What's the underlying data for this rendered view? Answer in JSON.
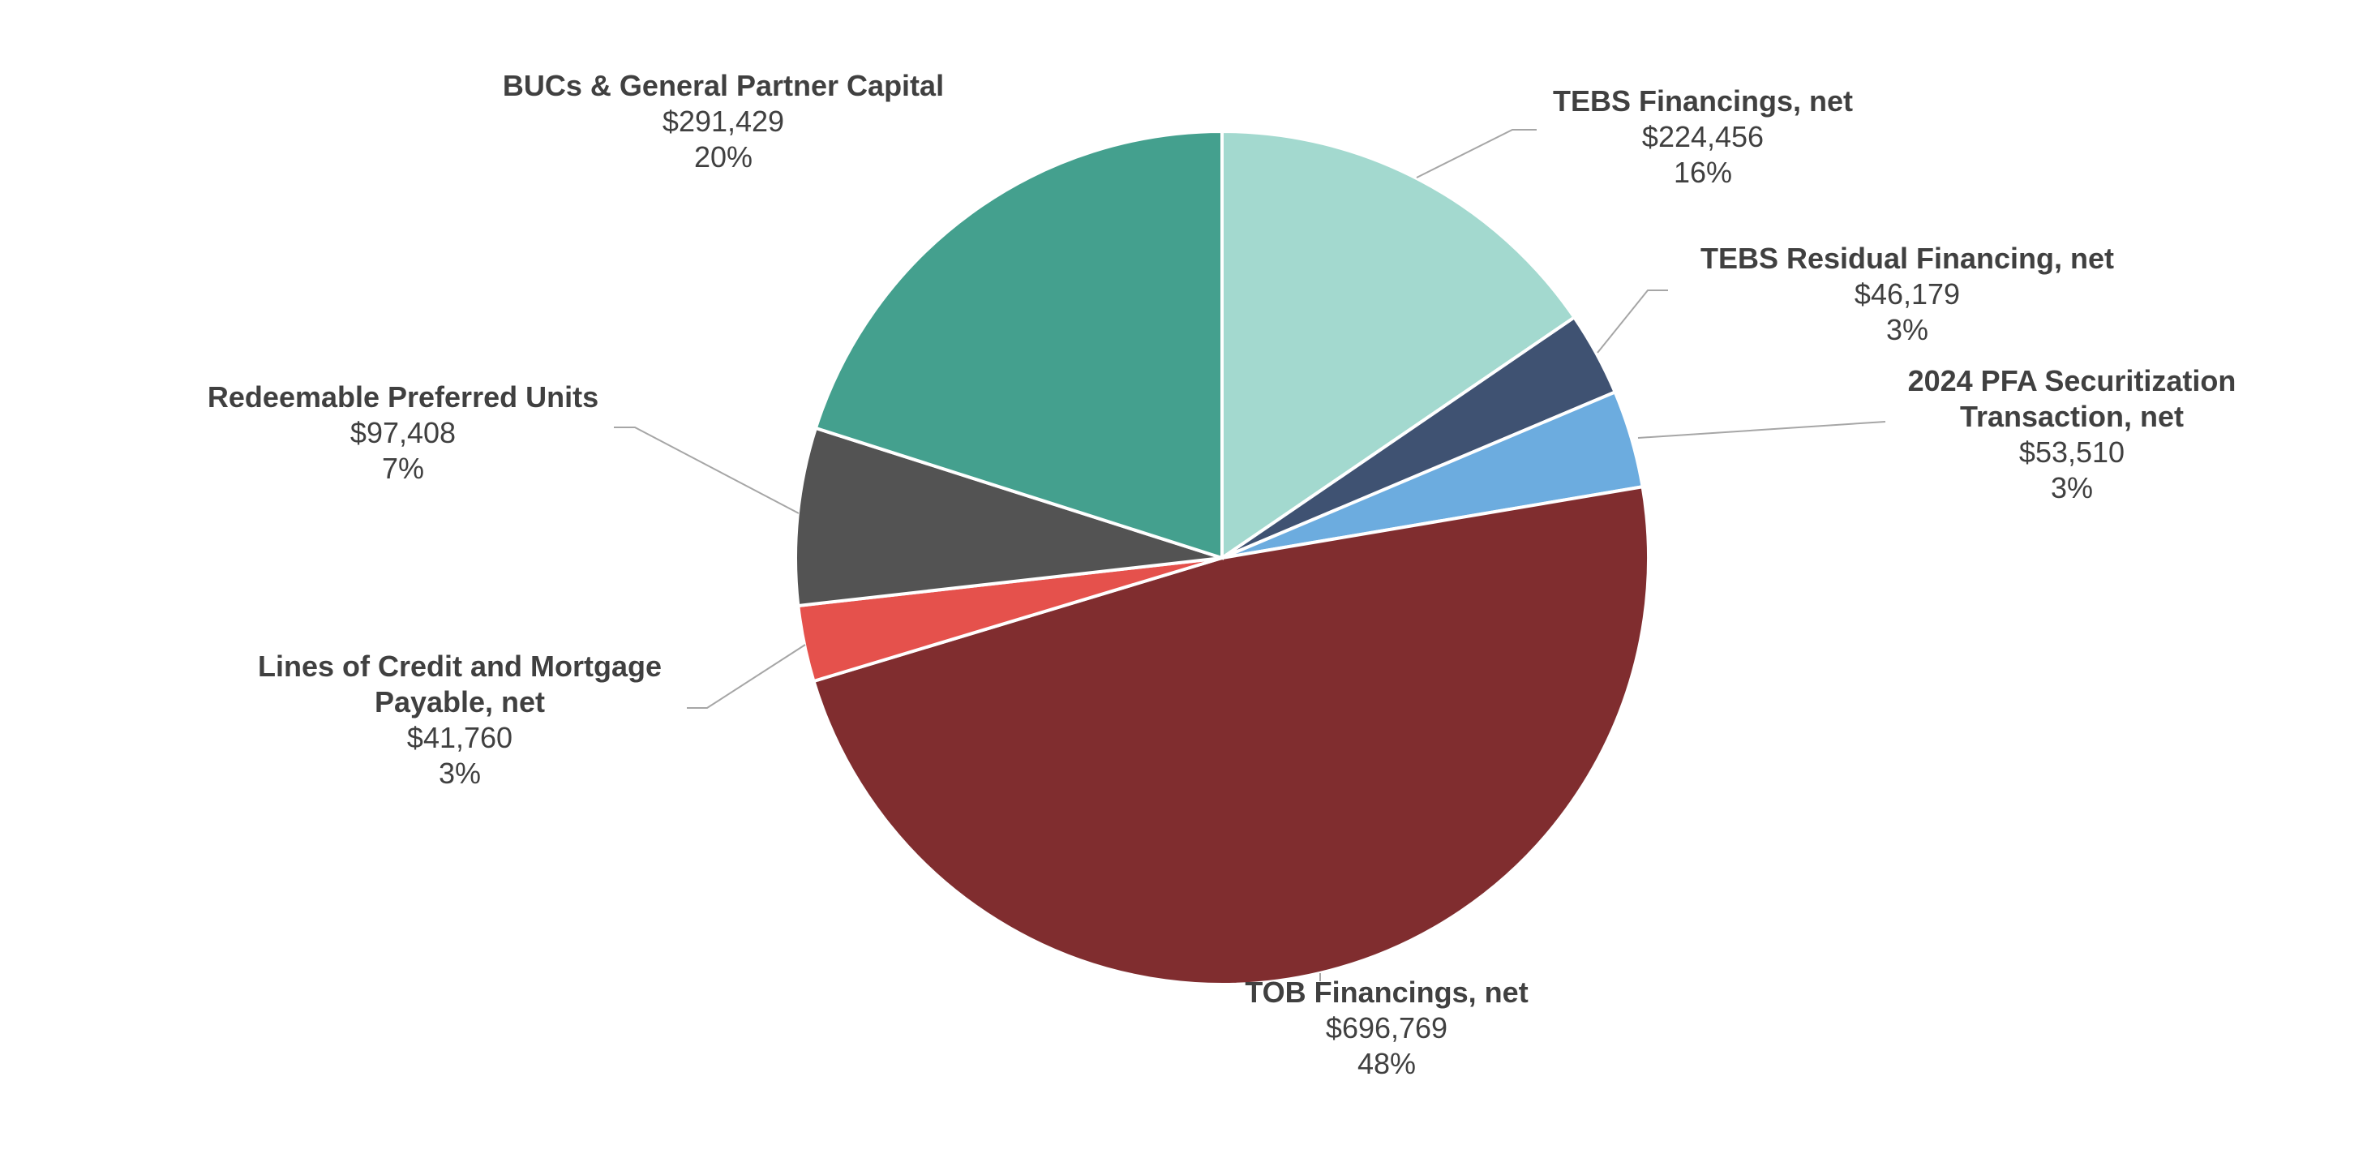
{
  "chart_data": {
    "type": "pie",
    "title": "",
    "start_angle_deg": 0,
    "direction": "clockwise",
    "legend": "none",
    "slices": [
      {
        "lines": [
          "TEBS Financings, net"
        ],
        "value_label": "$224,456",
        "percent_label": "16%",
        "value": 224456,
        "color": "#a3d9cf"
      },
      {
        "lines": [
          "TEBS Residual Financing, net"
        ],
        "value_label": "$46,179",
        "percent_label": "3%",
        "value": 46179,
        "color": "#3f5272"
      },
      {
        "lines": [
          "2024 PFA Securitization",
          "Transaction, net"
        ],
        "value_label": "$53,510",
        "percent_label": "3%",
        "value": 53510,
        "color": "#6cacdf"
      },
      {
        "lines": [
          "TOB Financings, net"
        ],
        "value_label": "$696,769",
        "percent_label": "48%",
        "value": 696769,
        "color": "#802d2f"
      },
      {
        "lines": [
          "Lines of Credit and Mortgage",
          "Payable, net"
        ],
        "value_label": "$41,760",
        "percent_label": "3%",
        "value": 41760,
        "color": "#e5514c"
      },
      {
        "lines": [
          "Redeemable Preferred Units"
        ],
        "value_label": "$97,408",
        "percent_label": "7%",
        "value": 97408,
        "color": "#535353"
      },
      {
        "lines": [
          "BUCs & General Partner Capital"
        ],
        "value_label": "$291,429",
        "percent_label": "20%",
        "value": 291429,
        "color": "#44a08e"
      }
    ]
  }
}
